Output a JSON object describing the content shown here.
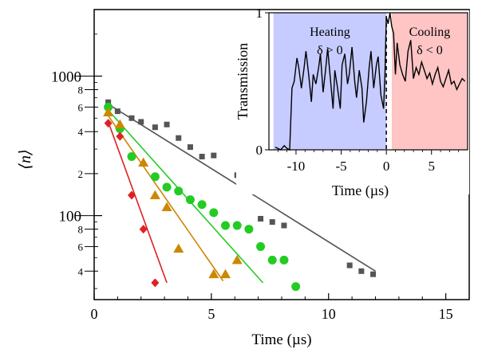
{
  "chart_data": [
    {
      "type": "scatter",
      "title": "",
      "xlabel": "Time (µs)",
      "ylabel": "⟨n⟩",
      "xlim": [
        0,
        16
      ],
      "ylim": [
        25,
        3000
      ],
      "yscale": "log",
      "x_ticks": [
        0,
        5,
        10,
        15
      ],
      "y_major_ticks": [
        100,
        1000
      ],
      "y_minor_labeled_ticks": [
        4,
        6,
        8,
        2,
        4,
        6,
        8
      ],
      "grid": false,
      "series": [
        {
          "color": "#555555",
          "marker": "square",
          "points": [
            [
              0.6,
              650
            ],
            [
              1.0,
              560
            ],
            [
              1.6,
              500
            ],
            [
              2.0,
              470
            ],
            [
              2.6,
              430
            ],
            [
              3.1,
              450
            ],
            [
              3.6,
              360
            ],
            [
              4.1,
              310
            ],
            [
              4.6,
              265
            ],
            [
              5.1,
              270
            ],
            [
              6.1,
              195
            ],
            [
              7.1,
              95
            ],
            [
              7.6,
              90
            ],
            [
              8.1,
              85
            ],
            [
              10.9,
              44
            ],
            [
              11.4,
              40
            ],
            [
              11.9,
              38
            ]
          ],
          "fit": [
            [
              0.6,
              630
            ],
            [
              12.0,
              40
            ]
          ]
        },
        {
          "color": "#22cc22",
          "marker": "circle",
          "points": [
            [
              0.6,
              600
            ],
            [
              1.1,
              420
            ],
            [
              1.6,
              265
            ],
            [
              2.6,
              190
            ],
            [
              3.1,
              160
            ],
            [
              3.6,
              150
            ],
            [
              4.1,
              130
            ],
            [
              4.6,
              120
            ],
            [
              5.1,
              105
            ],
            [
              5.6,
              85
            ],
            [
              6.1,
              85
            ],
            [
              6.6,
              80
            ],
            [
              7.1,
              60
            ],
            [
              7.6,
              48
            ],
            [
              8.1,
              48
            ],
            [
              8.6,
              31
            ]
          ],
          "fit": [
            [
              0.6,
              570
            ],
            [
              7.2,
              33
            ]
          ]
        },
        {
          "color": "#cc8800",
          "marker": "triangle",
          "points": [
            [
              0.6,
              550
            ],
            [
              1.1,
              450
            ],
            [
              2.1,
              240
            ],
            [
              2.6,
              140
            ],
            [
              3.1,
              115
            ],
            [
              3.6,
              58
            ],
            [
              5.1,
              38
            ],
            [
              5.6,
              38
            ],
            [
              6.1,
              48
            ]
          ],
          "fit": [
            [
              0.6,
              520
            ],
            [
              5.5,
              34
            ]
          ]
        },
        {
          "color": "#dd2222",
          "marker": "diamond",
          "points": [
            [
              0.6,
              460
            ],
            [
              1.1,
              370
            ],
            [
              1.6,
              140
            ],
            [
              2.1,
              80
            ],
            [
              2.6,
              33
            ]
          ],
          "fit": [
            [
              0.6,
              470
            ],
            [
              3.1,
              33
            ]
          ]
        }
      ]
    },
    {
      "type": "line",
      "title": "",
      "xlabel": "Time (µs)",
      "ylabel": "Transmission",
      "xlim": [
        -13,
        9
      ],
      "ylim": [
        0,
        1
      ],
      "x_ticks": [
        -10,
        -5,
        0,
        5
      ],
      "y_ticks": [
        0,
        1
      ],
      "regions": [
        {
          "label": "Heating",
          "sublabel": "δ > 0",
          "x0": -12.5,
          "x1": 0,
          "color": "#c6ccff"
        },
        {
          "label": "Cooling",
          "sublabel": "δ < 0",
          "x0": 0.6,
          "x1": 9,
          "color": "#ffc4c4"
        }
      ],
      "marker_line_x": 0,
      "series": [
        {
          "color": "#000000",
          "x": [
            -12.3,
            -11.7,
            -11.3,
            -11.0,
            -10.7,
            -10.45,
            -10.2,
            -9.9,
            -9.7,
            -9.4,
            -9.1,
            -8.9,
            -8.6,
            -8.3,
            -8.1,
            -7.8,
            -7.5,
            -7.3,
            -7.0,
            -6.7,
            -6.5,
            -6.2,
            -5.9,
            -5.7,
            -5.4,
            -5.1,
            -4.9,
            -4.6,
            -4.3,
            -4.1,
            -3.8,
            -3.5,
            -3.3,
            -3.0,
            -2.7,
            -2.5,
            -2.2,
            -1.9,
            -1.7,
            -1.4,
            -1.1,
            -0.9,
            -0.6,
            -0.3,
            -0.15,
            0.0,
            0.2,
            0.4,
            0.6,
            0.8,
            1.0,
            1.2,
            1.5,
            1.8,
            2.1,
            2.4,
            2.7,
            3.0,
            3.3,
            3.6,
            3.9,
            4.2,
            4.5,
            4.8,
            5.1,
            5.4,
            5.7,
            6.0,
            6.3,
            6.6,
            6.9,
            7.2,
            7.5,
            7.8,
            8.1,
            8.4,
            8.7
          ],
          "y": [
            0.02,
            0.0,
            0.03,
            0.01,
            0.0,
            0.45,
            0.5,
            0.67,
            0.6,
            0.45,
            0.6,
            0.72,
            0.55,
            0.35,
            0.55,
            0.48,
            0.6,
            0.7,
            0.42,
            0.6,
            0.74,
            0.52,
            0.3,
            0.58,
            0.45,
            0.3,
            0.62,
            0.7,
            0.48,
            0.55,
            0.75,
            0.5,
            0.38,
            0.58,
            0.45,
            0.2,
            0.35,
            0.6,
            0.72,
            0.45,
            0.62,
            0.68,
            0.4,
            0.3,
            0.55,
            0.97,
            0.92,
            1.0,
            0.9,
            0.85,
            0.55,
            0.78,
            0.62,
            0.55,
            0.5,
            0.72,
            0.8,
            0.52,
            0.6,
            0.55,
            0.64,
            0.58,
            0.52,
            0.56,
            0.48,
            0.55,
            0.6,
            0.5,
            0.46,
            0.52,
            0.58,
            0.48,
            0.5,
            0.44,
            0.48,
            0.52,
            0.5
          ]
        }
      ]
    }
  ]
}
